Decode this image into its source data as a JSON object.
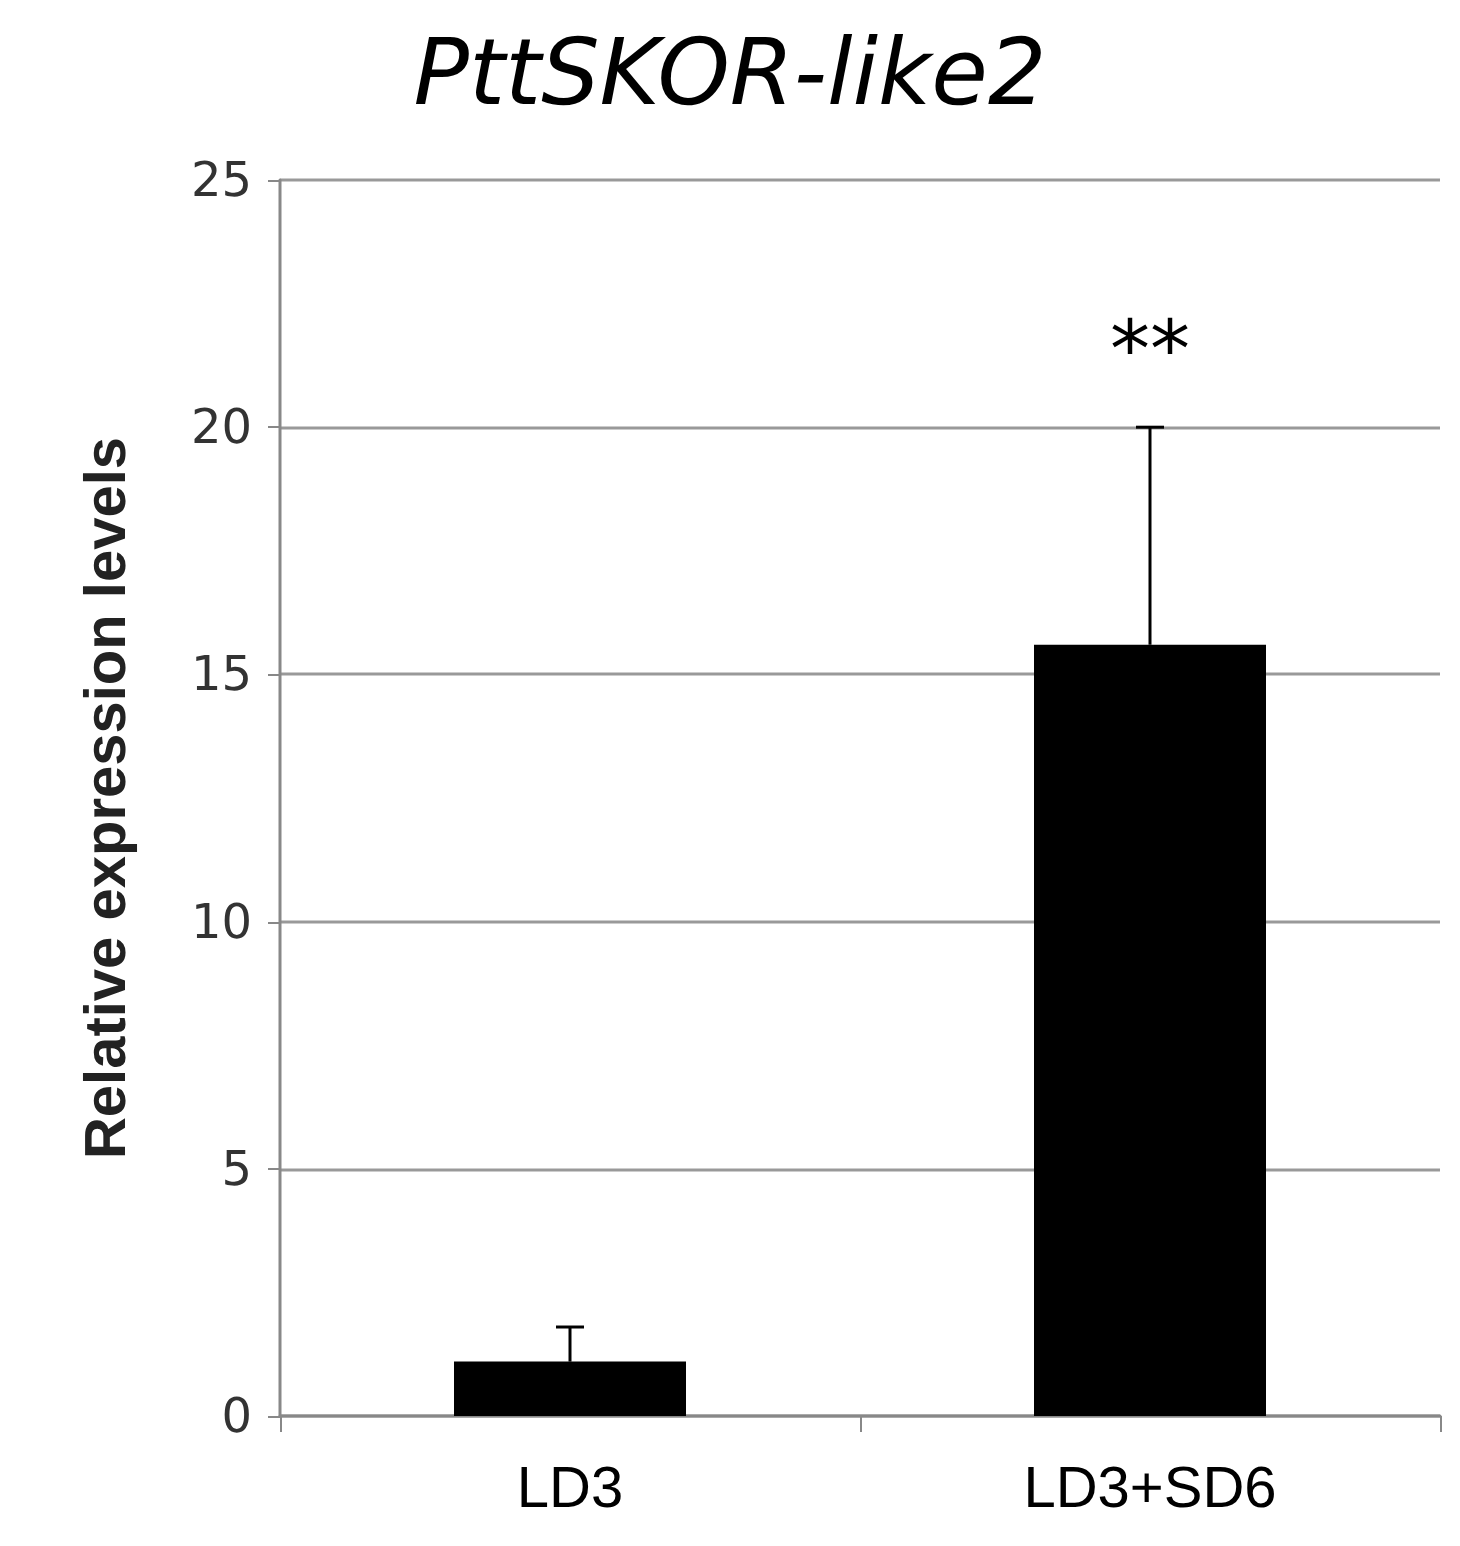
{
  "chart_data": {
    "type": "bar",
    "title": "PttSKOR-like2",
    "ylabel": "Relative expression levels",
    "categories": [
      "LD3",
      "LD3+SD6"
    ],
    "values": [
      1.1,
      15.6
    ],
    "color": "#000000",
    "errors": [
      [
        1.1,
        1.8
      ],
      [
        15.6,
        20.0
      ]
    ],
    "ylim": [
      0,
      25
    ],
    "yticks": [
      0,
      5,
      10,
      15,
      20,
      25
    ],
    "grid": "y",
    "annotations": [
      "**"
    ]
  }
}
